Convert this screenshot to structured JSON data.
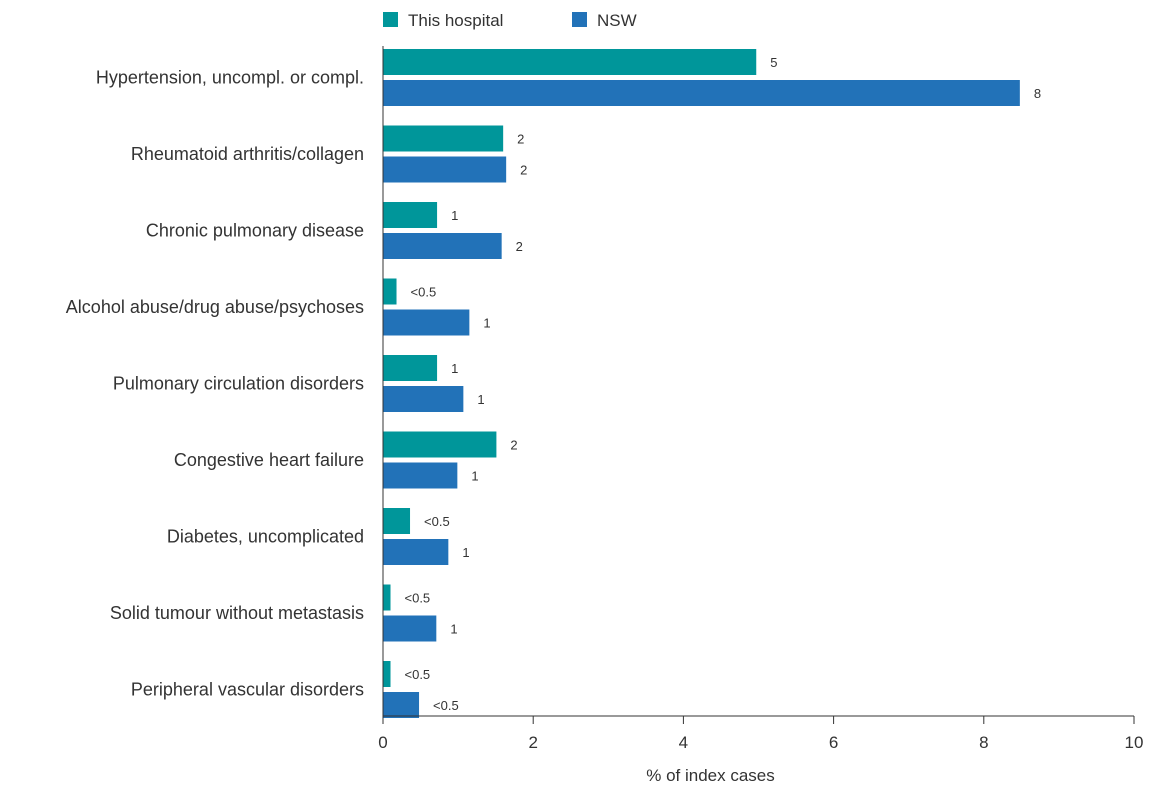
{
  "chart_data": {
    "type": "bar",
    "orientation": "horizontal",
    "categories": [
      "Hypertension, uncompl. or compl.",
      "Rheumatoid arthritis/collagen",
      "Chronic pulmonary disease",
      "Alcohol abuse/drug abuse/psychoses",
      "Pulmonary circulation disorders",
      "Congestive heart failure",
      "Diabetes, uncomplicated",
      "Solid tumour without metastasis",
      "Peripheral vascular disorders"
    ],
    "series": [
      {
        "name": "This hospital",
        "color": "#00969A",
        "values": [
          4.97,
          1.6,
          0.72,
          0.18,
          0.72,
          1.51,
          0.36,
          0.1,
          0.1
        ],
        "labels": [
          "5",
          "2",
          "1",
          "<0.5",
          "1",
          "2",
          "<0.5",
          "<0.5",
          "<0.5"
        ]
      },
      {
        "name": "NSW",
        "color": "#2272B8",
        "values": [
          8.48,
          1.64,
          1.58,
          1.15,
          1.07,
          0.99,
          0.87,
          0.71,
          0.48
        ],
        "labels": [
          "8",
          "2",
          "2",
          "1",
          "1",
          "1",
          "1",
          "1",
          "<0.5"
        ]
      }
    ],
    "xlabel": "% of index cases",
    "xlim": [
      0,
      10
    ],
    "xticks": [
      0,
      2,
      4,
      6,
      8,
      10
    ],
    "legend_position": "top",
    "grid": false
  }
}
